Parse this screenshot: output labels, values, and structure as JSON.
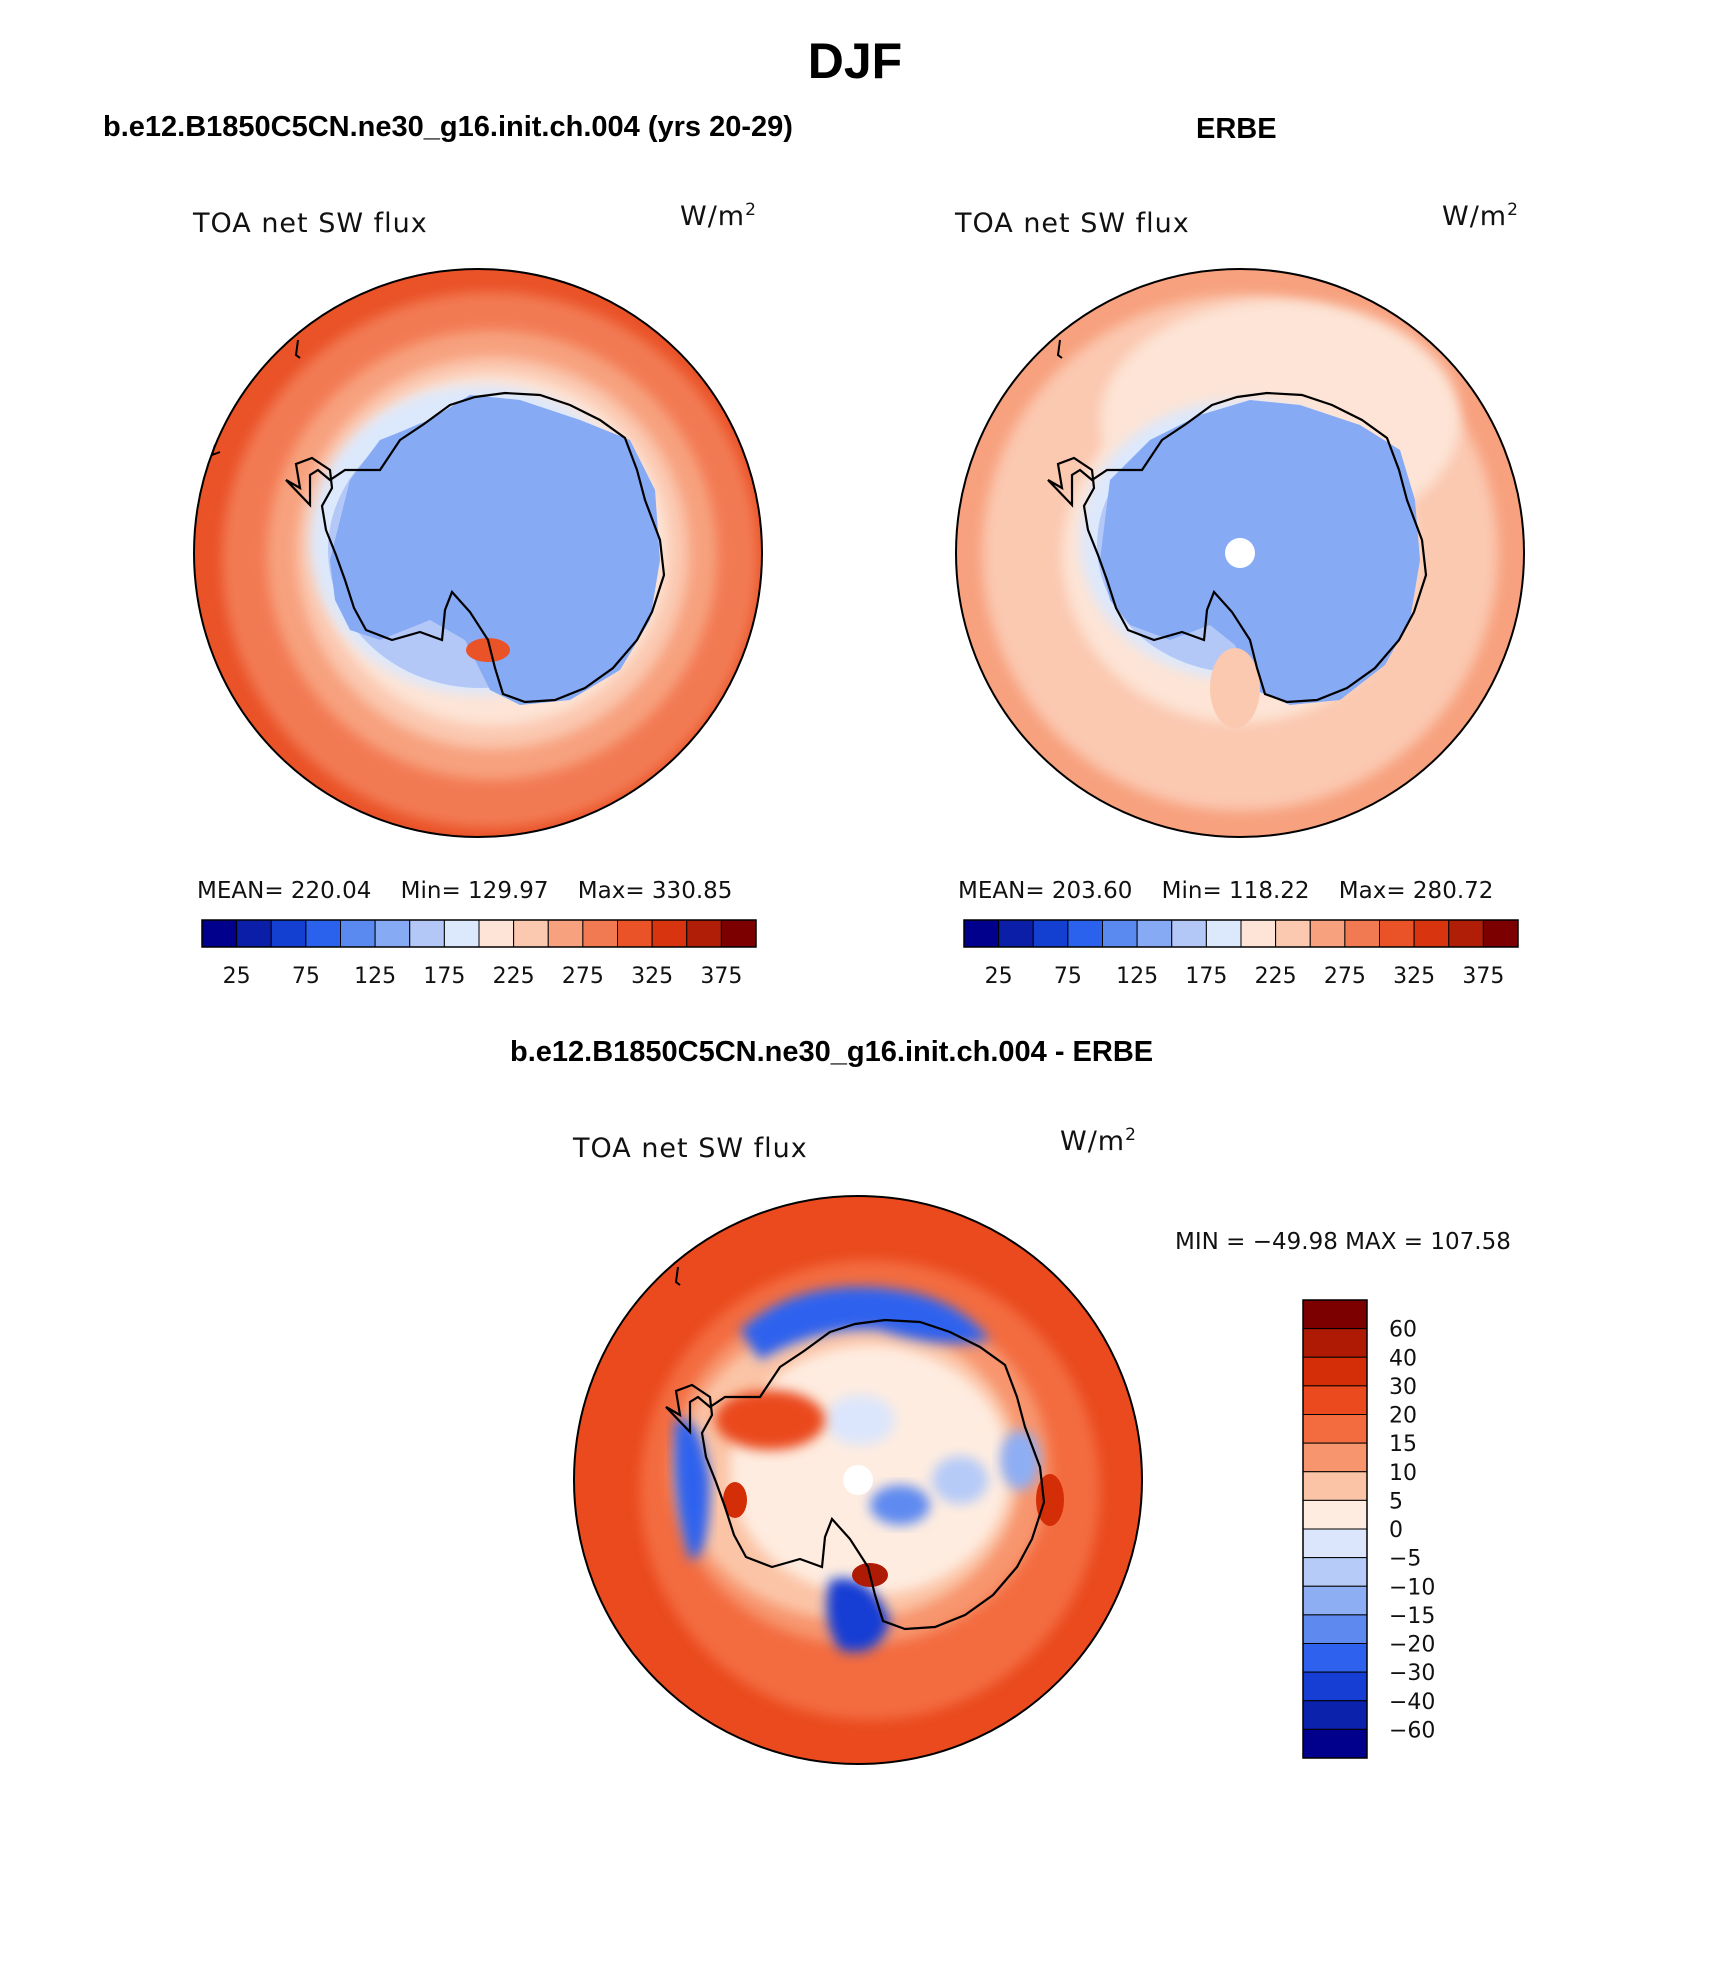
{
  "figure": {
    "title": "DJF",
    "top_left_title": "b.e12.B1850C5CN.ne30_g16.init.ch.004 (yrs 20-29)",
    "top_right_title": "ERBE",
    "bottom_title": "b.e12.B1850C5CN.ne30_g16.init.ch.004 - ERBE"
  },
  "panels": {
    "model": {
      "variable": "TOA net SW flux",
      "units_base": "W/m",
      "units_exp": "2",
      "mean_label": "MEAN=",
      "mean": "220.04",
      "min_label": "Min=",
      "min": "129.97",
      "max_label": "Max=",
      "max": "330.85"
    },
    "obs": {
      "variable": "TOA net SW flux",
      "units_base": "W/m",
      "units_exp": "2",
      "mean_label": "MEAN=",
      "mean": "203.60",
      "min_label": "Min=",
      "min": "118.22",
      "max_label": "Max=",
      "max": "280.72"
    },
    "diff": {
      "variable": "TOA net SW flux",
      "units_base": "W/m",
      "units_exp": "2",
      "minmax": "MIN = −49.98  MAX = 107.58"
    }
  },
  "colorbars": {
    "abs_colors": [
      "#00008c",
      "#0a1ea8",
      "#1440d2",
      "#2a62ee",
      "#5a8af0",
      "#86aaf4",
      "#b4c8f8",
      "#dce8fc",
      "#fde4d6",
      "#fbc8b0",
      "#f7a17e",
      "#f27a52",
      "#ea5228",
      "#d83410",
      "#b01e08",
      "#7c0000"
    ],
    "abs_labels": [
      "25",
      "75",
      "125",
      "175",
      "225",
      "275",
      "325",
      "375"
    ],
    "diff_colors": [
      "#7c0000",
      "#ae1a04",
      "#d42e08",
      "#ea4a1e",
      "#f36c40",
      "#f7956e",
      "#fbc4a6",
      "#feece0",
      "#dbe6fc",
      "#b6cbf8",
      "#8eaef4",
      "#5e8af0",
      "#2e62ee",
      "#163ed4",
      "#0a22ac",
      "#00008c"
    ],
    "diff_labels": [
      "60",
      "40",
      "30",
      "20",
      "15",
      "10",
      "5",
      "0",
      "−5",
      "−10",
      "−15",
      "−20",
      "−30",
      "−40",
      "−60"
    ]
  }
}
